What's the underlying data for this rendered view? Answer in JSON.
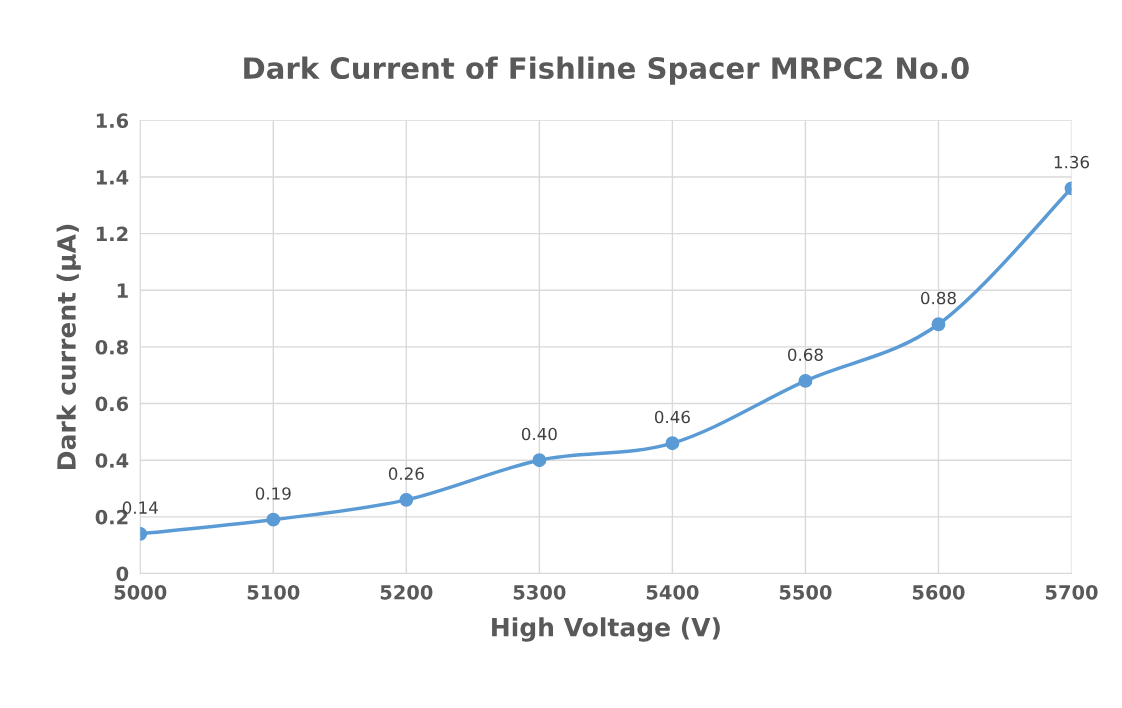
{
  "chart_data": {
    "type": "line",
    "title": "Dark Current of Fishline Spacer MRPC2 No.0",
    "xlabel": "High Voltage (V)",
    "ylabel": "Dark current (μA)",
    "x": [
      5000,
      5100,
      5200,
      5300,
      5400,
      5500,
      5600,
      5700
    ],
    "series": [
      {
        "color": "#5b9bd5",
        "values": [
          0.14,
          0.19,
          0.26,
          0.4,
          0.46,
          0.68,
          0.88,
          1.36
        ],
        "value_labels": [
          "0.14",
          "0.19",
          "0.26",
          "0.40",
          "0.46",
          "0.68",
          "0.88",
          "1.36"
        ]
      }
    ],
    "xlim": [
      5000,
      5700
    ],
    "xticks": [
      5000,
      5100,
      5200,
      5300,
      5400,
      5500,
      5600,
      5700
    ],
    "ylim": [
      0,
      1.6
    ],
    "yticks": [
      0,
      0.2,
      0.4,
      0.6,
      0.8,
      1,
      1.2,
      1.4,
      1.6
    ],
    "grid": true,
    "marker": "circle",
    "line_style": "solid"
  }
}
